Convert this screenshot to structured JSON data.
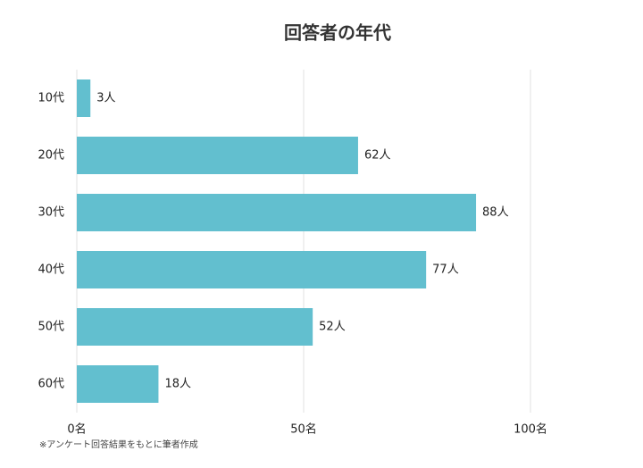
{
  "chart_data": {
    "type": "bar",
    "orientation": "horizontal",
    "title": "回答者の年代",
    "categories": [
      "10代",
      "20代",
      "30代",
      "40代",
      "50代",
      "60代"
    ],
    "values": [
      3,
      62,
      88,
      77,
      52,
      18
    ],
    "value_labels": [
      "3人",
      "62人",
      "88人",
      "77人",
      "52人",
      "18人"
    ],
    "color": "#62bfcf",
    "xlim": [
      0,
      100
    ],
    "xticks": [
      {
        "value": 0,
        "label": "0名"
      },
      {
        "value": 50,
        "label": "50名"
      },
      {
        "value": 100,
        "label": "100名"
      }
    ],
    "grid": true,
    "note": "※アンケート回答結果をもとに筆者作成"
  }
}
